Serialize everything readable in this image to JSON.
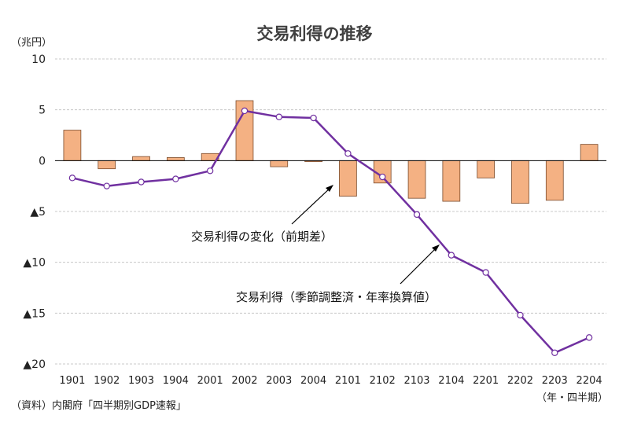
{
  "chart_data": {
    "type": "bar+line",
    "title": "交易利得の推移",
    "y_unit_label": "（兆円）",
    "x_unit_label": "（年・四半期）",
    "source": "（資料）内閣府「四半期別GDP速報」",
    "ylim": [
      -20,
      10
    ],
    "y_ticks": [
      {
        "value": 10,
        "label": "10"
      },
      {
        "value": 5,
        "label": "5"
      },
      {
        "value": 0,
        "label": "0"
      },
      {
        "value": -5,
        "label": "▲5"
      },
      {
        "value": -10,
        "label": "▲10"
      },
      {
        "value": -15,
        "label": "▲15"
      },
      {
        "value": -20,
        "label": "▲20"
      }
    ],
    "grid": true,
    "categories": [
      "1901",
      "1902",
      "1903",
      "1904",
      "2001",
      "2002",
      "2003",
      "2004",
      "2101",
      "2102",
      "2103",
      "2104",
      "2201",
      "2202",
      "2203",
      "2204"
    ],
    "series": [
      {
        "name": "交易利得の変化（前期差）",
        "kind": "bar",
        "color": "#F4B183",
        "values": [
          3.0,
          -0.8,
          0.4,
          0.3,
          0.7,
          5.9,
          -0.6,
          -0.1,
          -3.5,
          -2.2,
          -3.7,
          -4.0,
          -1.7,
          -4.2,
          -3.9,
          1.6
        ]
      },
      {
        "name": "交易利得（季節調整済・年率換算値）",
        "kind": "line",
        "color": "#7030A0",
        "values": [
          -1.7,
          -2.5,
          -2.1,
          -1.8,
          -1.0,
          4.9,
          4.3,
          4.2,
          0.7,
          -1.6,
          -5.3,
          -9.3,
          -11.0,
          -15.2,
          -18.9,
          -17.4
        ]
      }
    ]
  }
}
